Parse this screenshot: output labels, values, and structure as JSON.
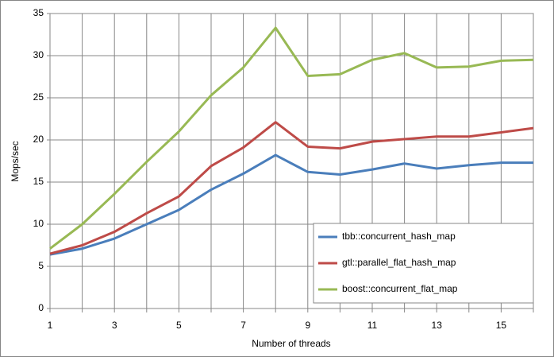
{
  "chart_data": {
    "type": "line",
    "x_label": "Number of threads",
    "y_label": "Mops/sec",
    "x": [
      1,
      2,
      3,
      4,
      5,
      6,
      7,
      8,
      9,
      10,
      11,
      12,
      13,
      14,
      15,
      16
    ],
    "series": [
      {
        "name": "tbb::concurrent_hash_map",
        "color": "#4a7ebb",
        "values": [
          6.4,
          7.1,
          8.3,
          10.0,
          11.7,
          14.1,
          16.0,
          18.2,
          16.2,
          15.9,
          16.5,
          17.2,
          16.6,
          17.0,
          17.3,
          17.3
        ]
      },
      {
        "name": "gtl::parallel_flat_hash_map",
        "color": "#be4b48",
        "values": [
          6.5,
          7.5,
          9.1,
          11.3,
          13.3,
          16.9,
          19.1,
          22.1,
          19.2,
          19.0,
          19.8,
          20.1,
          20.4,
          20.4,
          20.9,
          21.4
        ]
      },
      {
        "name": "boost::concurrent_flat_map",
        "color": "#98b954",
        "values": [
          7.1,
          10.0,
          13.6,
          17.4,
          21.0,
          25.3,
          28.6,
          33.3,
          27.6,
          27.8,
          29.5,
          30.3,
          28.6,
          28.7,
          29.4,
          29.5
        ]
      }
    ],
    "xlim": [
      1,
      16
    ],
    "xticks": [
      1,
      3,
      5,
      7,
      9,
      11,
      13,
      15
    ],
    "x_minor_gridlines": [
      2,
      4,
      6,
      8,
      10,
      12,
      14,
      16
    ],
    "ylim": [
      0,
      35
    ],
    "yticks": [
      0,
      5,
      10,
      15,
      20,
      25,
      30,
      35
    ],
    "grid": true,
    "legend": "lower right"
  }
}
